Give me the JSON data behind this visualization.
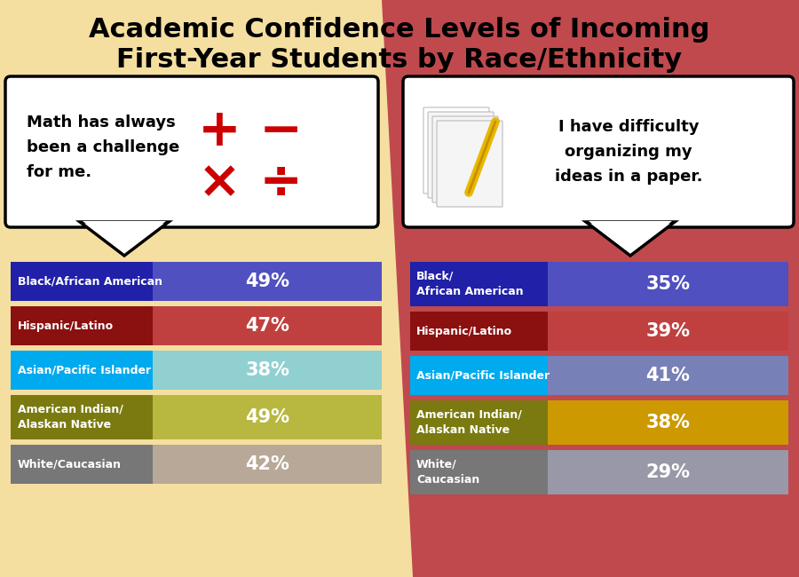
{
  "title_line1": "Academic Confidence Levels of Incoming",
  "title_line2": "First-Year Students by Race/Ethnicity",
  "bg_left": "#F5DFA0",
  "bg_right": "#C0494E",
  "title_fontsize": 22,
  "math_statement": "Math has always\nbeen a challenge\nfor me.",
  "writing_statement": "I have difficulty\norganizing my\nideas in a paper.",
  "math_data": {
    "labels": [
      "Black/African American",
      "Hispanic/Latino",
      "Asian/Pacific Islander",
      "American Indian/\nAlaskan Native",
      "White/Caucasian"
    ],
    "values": [
      49,
      47,
      38,
      49,
      42
    ],
    "label_colors": [
      "#2020A8",
      "#8B1010",
      "#00AAEE",
      "#7A7A10",
      "#777777"
    ],
    "bar_colors": [
      "#5050C0",
      "#C04040",
      "#90D0D0",
      "#B8B840",
      "#B8A898"
    ]
  },
  "writing_data": {
    "labels": [
      "Black/\nAfrican American",
      "Hispanic/Latino",
      "Asian/Pacific Islander",
      "American Indian/\nAlaskan Native",
      "White/\nCaucasian"
    ],
    "values": [
      35,
      39,
      41,
      38,
      29
    ],
    "label_colors": [
      "#2020A8",
      "#8B1010",
      "#00AAEE",
      "#7A7A10",
      "#777777"
    ],
    "bar_colors": [
      "#5050C0",
      "#C04040",
      "#7880B8",
      "#CC9900",
      "#9898A8"
    ]
  }
}
